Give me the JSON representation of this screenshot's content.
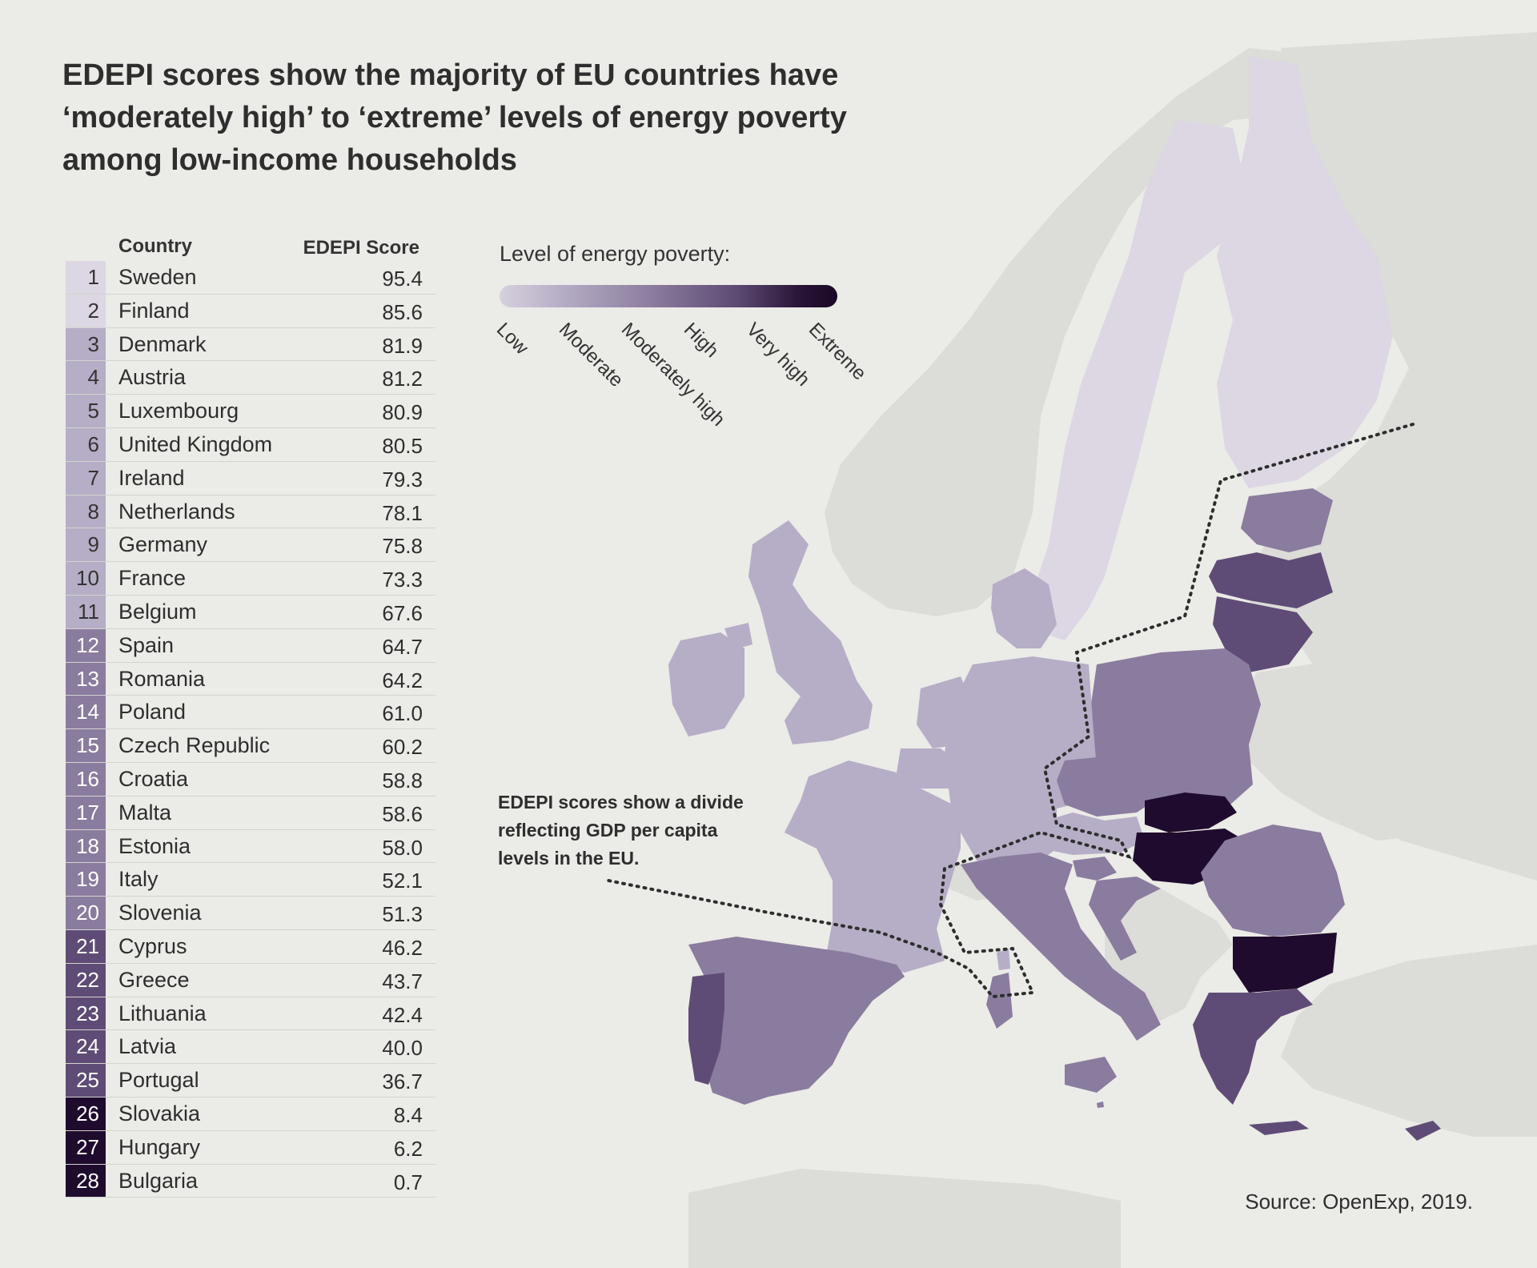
{
  "title": "EDEPI scores show the majority of EU countries have ‘moderately high’ to ‘extreme’ levels of energy poverty among low-income households",
  "table": {
    "header_country": "Country",
    "header_score": "EDEPI Score",
    "rows": [
      {
        "rank": "1",
        "country": "Sweden",
        "score": "95.4",
        "level": "low"
      },
      {
        "rank": "2",
        "country": "Finland",
        "score": "85.6",
        "level": "low"
      },
      {
        "rank": "3",
        "country": "Denmark",
        "score": "81.9",
        "level": "moderate"
      },
      {
        "rank": "4",
        "country": "Austria",
        "score": "81.2",
        "level": "moderate"
      },
      {
        "rank": "5",
        "country": "Luxembourg",
        "score": "80.9",
        "level": "moderate"
      },
      {
        "rank": "6",
        "country": "United Kingdom",
        "score": "80.5",
        "level": "moderate"
      },
      {
        "rank": "7",
        "country": "Ireland",
        "score": "79.3",
        "level": "moderate"
      },
      {
        "rank": "8",
        "country": "Netherlands",
        "score": "78.1",
        "level": "moderate"
      },
      {
        "rank": "9",
        "country": "Germany",
        "score": "75.8",
        "level": "moderate"
      },
      {
        "rank": "10",
        "country": "France",
        "score": "73.3",
        "level": "moderate"
      },
      {
        "rank": "11",
        "country": "Belgium",
        "score": "67.6",
        "level": "moderate"
      },
      {
        "rank": "12",
        "country": "Spain",
        "score": "64.7",
        "level": "moderately_high"
      },
      {
        "rank": "13",
        "country": "Romania",
        "score": "64.2",
        "level": "moderately_high"
      },
      {
        "rank": "14",
        "country": "Poland",
        "score": "61.0",
        "level": "moderately_high"
      },
      {
        "rank": "15",
        "country": "Czech Republic",
        "score": "60.2",
        "level": "moderately_high"
      },
      {
        "rank": "16",
        "country": "Croatia",
        "score": "58.8",
        "level": "moderately_high"
      },
      {
        "rank": "17",
        "country": "Malta",
        "score": "58.6",
        "level": "moderately_high"
      },
      {
        "rank": "18",
        "country": "Estonia",
        "score": "58.0",
        "level": "moderately_high"
      },
      {
        "rank": "19",
        "country": "Italy",
        "score": "52.1",
        "level": "moderately_high"
      },
      {
        "rank": "20",
        "country": "Slovenia",
        "score": "51.3",
        "level": "moderately_high"
      },
      {
        "rank": "21",
        "country": "Cyprus",
        "score": "46.2",
        "level": "high"
      },
      {
        "rank": "22",
        "country": "Greece",
        "score": "43.7",
        "level": "high"
      },
      {
        "rank": "23",
        "country": "Lithuania",
        "score": "42.4",
        "level": "high"
      },
      {
        "rank": "24",
        "country": "Latvia",
        "score": "40.0",
        "level": "high"
      },
      {
        "rank": "25",
        "country": "Portugal",
        "score": "36.7",
        "level": "high"
      },
      {
        "rank": "26",
        "country": "Slovakia",
        "score": "8.4",
        "level": "extreme"
      },
      {
        "rank": "27",
        "country": "Hungary",
        "score": "6.2",
        "level": "extreme"
      },
      {
        "rank": "28",
        "country": "Bulgaria",
        "score": "0.7",
        "level": "extreme"
      }
    ]
  },
  "legend": {
    "title": "Level of energy poverty:",
    "levels": [
      "Low",
      "Moderate",
      "Moderately high",
      "High",
      "Very high",
      "Extreme"
    ],
    "colors": {
      "low": "#dcd7e3",
      "moderate": "#b6adc6",
      "moderately_high": "#8a7c9e",
      "high": "#5e4c76",
      "very_high": "#3a2550",
      "extreme": "#1f0b2e",
      "non_eu": "#dcdcd8",
      "sea": "#ebebe7"
    }
  },
  "annotation": "EDEPI scores show a divide reflecting GDP per capita levels in the EU.",
  "source": "Source: OpenExp, 2019."
}
